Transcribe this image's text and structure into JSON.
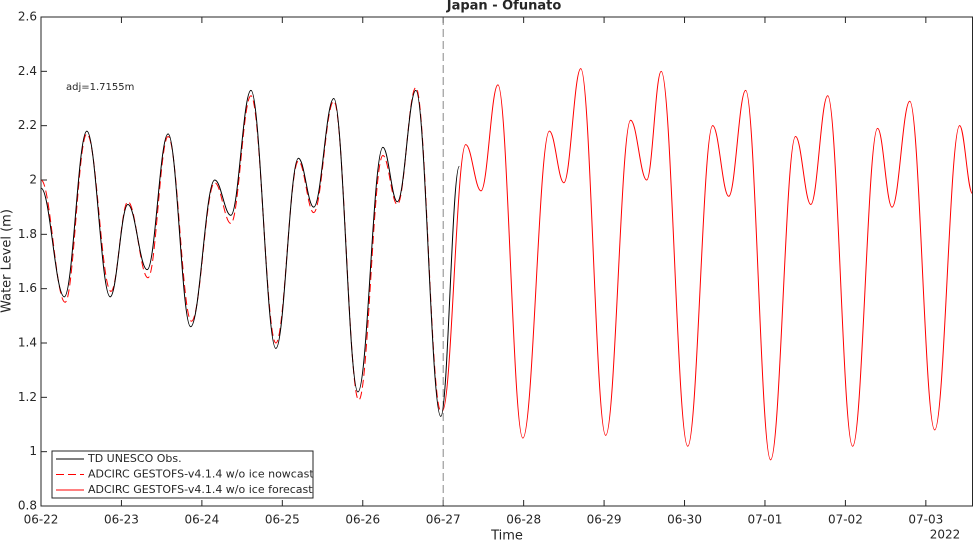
{
  "chart_data": {
    "type": "line",
    "title": "Japan - Ofunato",
    "xlabel": "Time",
    "ylabel": "Water Level (m)",
    "annotation": "adj=1.7155m",
    "year_label": "2022",
    "xlim": [
      0,
      11.58
    ],
    "ylim": [
      0.8,
      2.6
    ],
    "yticks": [
      0.8,
      1,
      1.2,
      1.4,
      1.6,
      1.8,
      2,
      2.2,
      2.4,
      2.6
    ],
    "xticks": [
      {
        "value": 0,
        "label": "06-22"
      },
      {
        "value": 1,
        "label": "06-23"
      },
      {
        "value": 2,
        "label": "06-24"
      },
      {
        "value": 3,
        "label": "06-25"
      },
      {
        "value": 4,
        "label": "06-26"
      },
      {
        "value": 5,
        "label": "06-27"
      },
      {
        "value": 6,
        "label": "06-28"
      },
      {
        "value": 7,
        "label": "06-29"
      },
      {
        "value": 8,
        "label": "06-30"
      },
      {
        "value": 9,
        "label": "07-01"
      },
      {
        "value": 10,
        "label": "07-02"
      },
      {
        "value": 11,
        "label": "07-03"
      }
    ],
    "vline": 5,
    "legend": "lower left",
    "grid": false,
    "series": [
      {
        "name": "TD UNESCO Obs.",
        "color": "#000000",
        "dash": false,
        "x": [
          0,
          0.29,
          0.57,
          0.86,
          1.08,
          1.32,
          1.58,
          1.86,
          2.16,
          2.36,
          2.61,
          2.92,
          3.2,
          3.39,
          3.64,
          3.94,
          4.25,
          4.43,
          4.66,
          4.97,
          5.2
        ],
        "values": [
          1.97,
          1.57,
          2.18,
          1.57,
          1.91,
          1.67,
          2.17,
          1.46,
          2.0,
          1.87,
          2.33,
          1.38,
          2.08,
          1.9,
          2.3,
          1.22,
          2.12,
          1.92,
          2.33,
          1.13,
          2.05
        ]
      },
      {
        "name": "ADCIRC GESTOFS-v4.1.4 w/o ice nowcast",
        "color": "#ff0000",
        "dash": true,
        "x": [
          0,
          0.3,
          0.57,
          0.87,
          1.08,
          1.33,
          1.58,
          1.87,
          2.16,
          2.36,
          2.61,
          2.92,
          3.2,
          3.39,
          3.64,
          3.95,
          4.25,
          4.43,
          4.66,
          4.97
        ],
        "values": [
          2.0,
          1.55,
          2.17,
          1.59,
          1.92,
          1.64,
          2.16,
          1.48,
          1.99,
          1.84,
          2.31,
          1.4,
          2.07,
          1.88,
          2.29,
          1.19,
          2.09,
          1.91,
          2.34,
          1.15
        ]
      },
      {
        "name": "ADCIRC GESTOFS-v4.1.4 w/o ice forecast",
        "color": "#ff0000",
        "dash": false,
        "x": [
          4.99,
          5.28,
          5.47,
          5.68,
          5.99,
          6.32,
          6.5,
          6.71,
          7.02,
          7.33,
          7.53,
          7.71,
          8.04,
          8.35,
          8.55,
          8.76,
          9.07,
          9.38,
          9.57,
          9.78,
          10.09,
          10.4,
          10.58,
          10.8,
          11.11,
          11.42,
          11.58
        ],
        "values": [
          1.15,
          2.13,
          1.96,
          2.35,
          1.05,
          2.18,
          1.99,
          2.41,
          1.06,
          2.22,
          2.0,
          2.4,
          1.02,
          2.2,
          1.94,
          2.33,
          0.97,
          2.16,
          1.91,
          2.31,
          1.02,
          2.19,
          1.9,
          2.29,
          1.08,
          2.2,
          1.95
        ]
      }
    ]
  }
}
